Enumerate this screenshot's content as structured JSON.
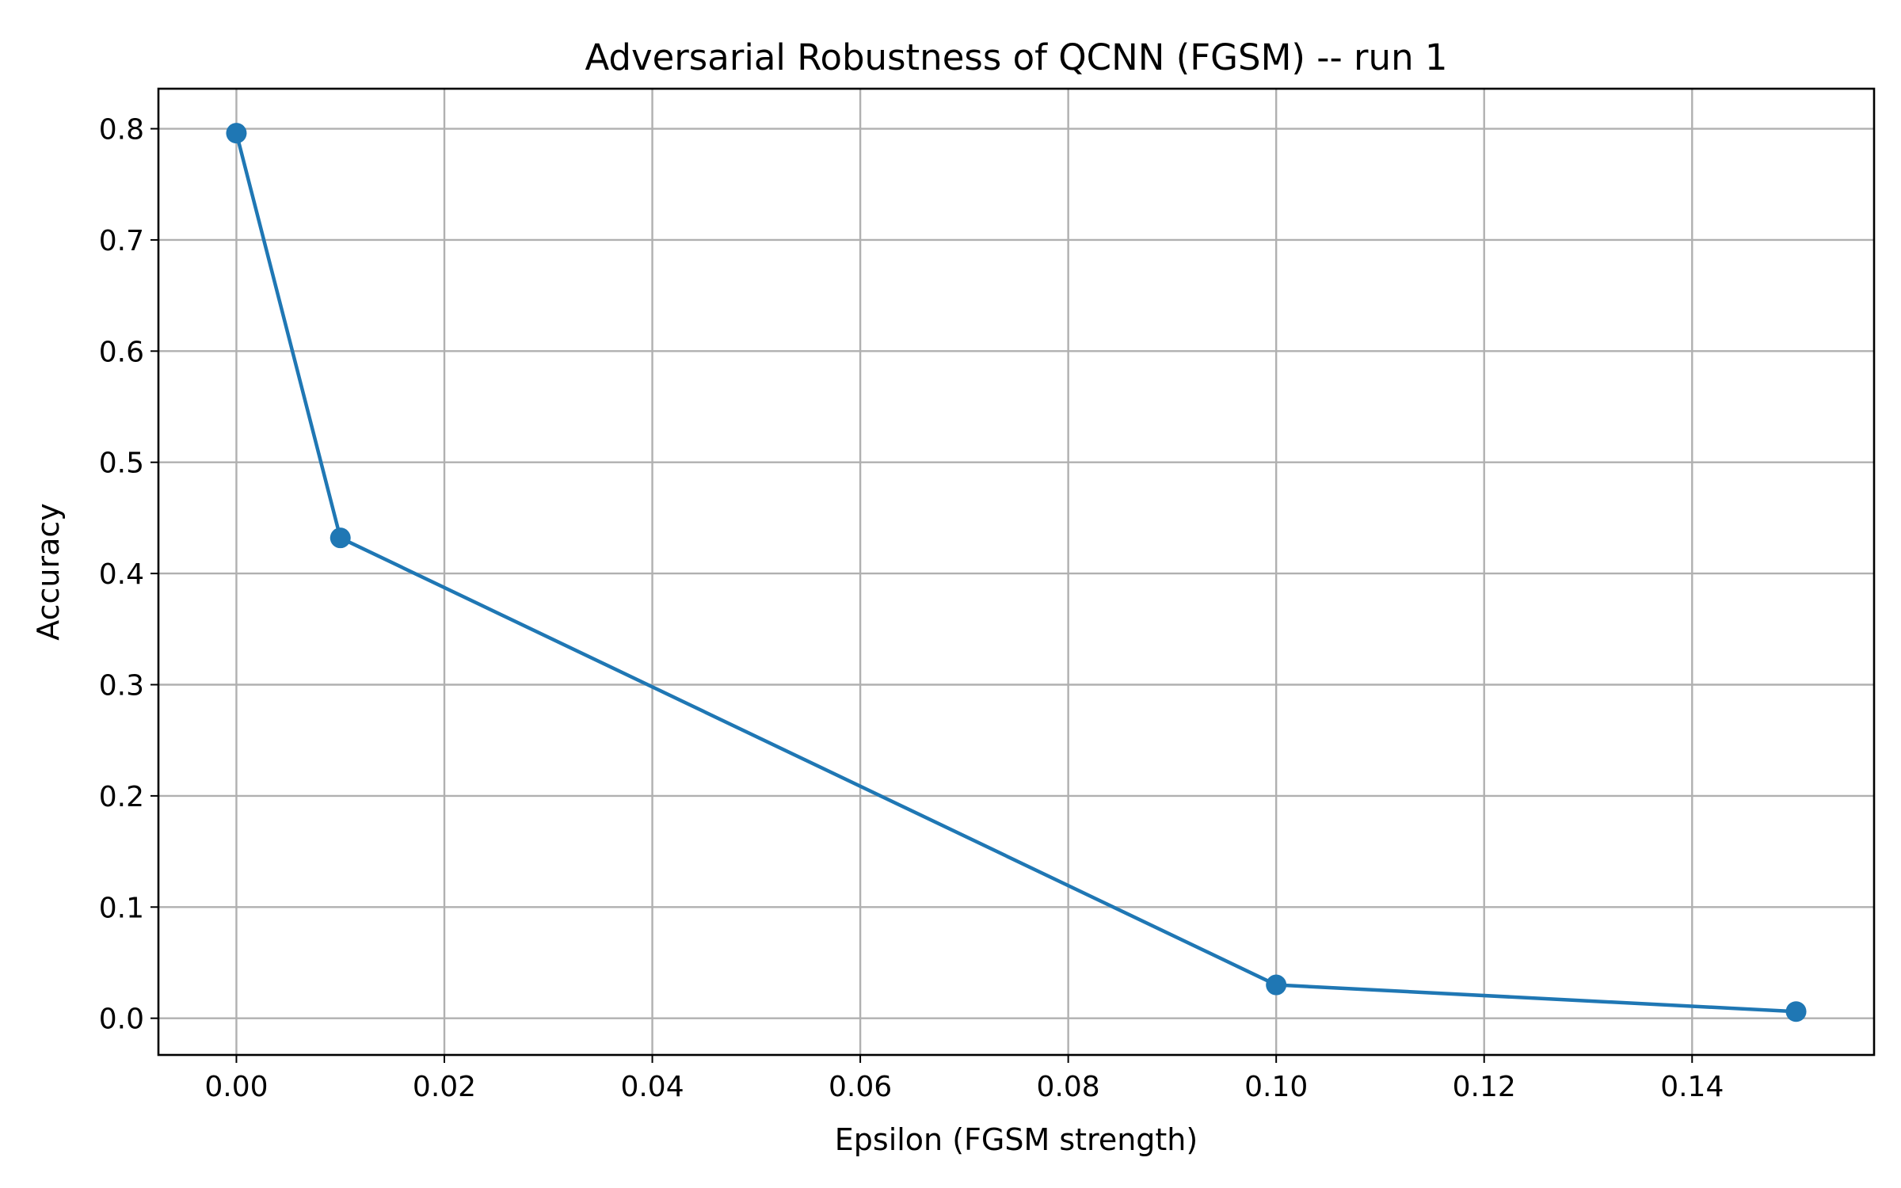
{
  "chart_data": {
    "type": "line",
    "title": "Adversarial Robustness of QCNN (FGSM) -- run 1",
    "xlabel": "Epsilon (FGSM strength)",
    "ylabel": "Accuracy",
    "xlim": [
      -0.0075,
      0.1575
    ],
    "ylim": [
      -0.033,
      0.836
    ],
    "xticks": [
      0.0,
      0.02,
      0.04,
      0.06,
      0.08,
      0.1,
      0.12,
      0.14
    ],
    "xtick_labels": [
      "0.00",
      "0.02",
      "0.04",
      "0.06",
      "0.08",
      "0.10",
      "0.12",
      "0.14"
    ],
    "yticks": [
      0.0,
      0.1,
      0.2,
      0.3,
      0.4,
      0.5,
      0.6,
      0.7,
      0.8
    ],
    "ytick_labels": [
      "0.0",
      "0.1",
      "0.2",
      "0.3",
      "0.4",
      "0.5",
      "0.6",
      "0.7",
      "0.8"
    ],
    "grid": true,
    "series": [
      {
        "color": "#1f77b4",
        "marker": "circle",
        "x": [
          0.0,
          0.01,
          0.1,
          0.15
        ],
        "y": [
          0.796,
          0.432,
          0.03,
          0.006
        ]
      }
    ]
  }
}
